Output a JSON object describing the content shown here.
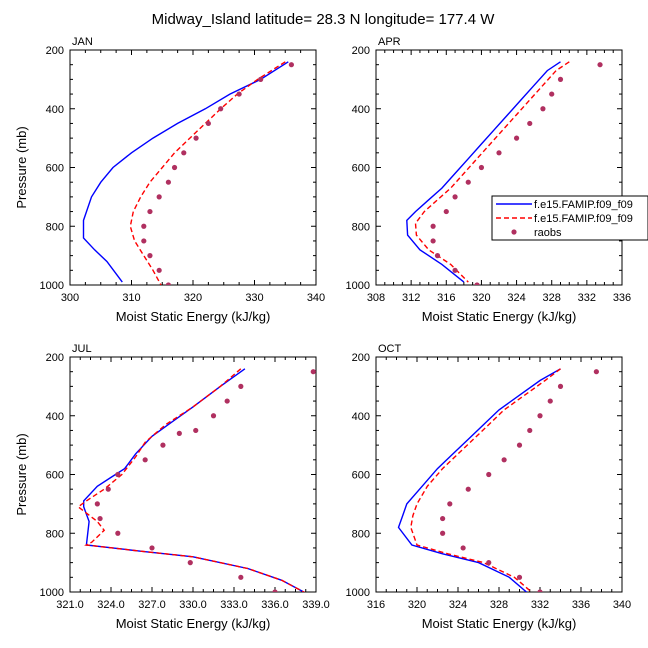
{
  "title": "Midway_Island  latitude= 28.3 N longitude= 177.4 W",
  "colors": {
    "model1": "#0000ff",
    "model2": "#ff0000",
    "raobs": "#b03060"
  },
  "legend": {
    "placement": "right of APR panel",
    "entries": [
      "f.e15.FAMIP.f09_f09",
      "f.e15.FAMIP.f09_f09",
      "raobs"
    ]
  },
  "chart_data": [
    {
      "type": "line",
      "panel": "JAN",
      "xlabel": "Moist Static Energy (kJ/kg)",
      "ylabel": "Pressure (mb)",
      "xlim": [
        300,
        340
      ],
      "ylim": [
        1000,
        200
      ],
      "y_reversed": true,
      "xticks": [
        "300",
        "310",
        "320",
        "330",
        "340"
      ],
      "yticks": [
        "200",
        "400",
        "600",
        "800",
        "1000"
      ],
      "series": [
        {
          "name": "f.e15.FAMIP.f09_f09",
          "style": "solid",
          "color": "#0000ff",
          "points": [
            [
              335.5,
              240
            ],
            [
              331,
              300
            ],
            [
              326,
              350
            ],
            [
              322,
              400
            ],
            [
              317.5,
              450
            ],
            [
              313.5,
              500
            ],
            [
              310,
              550
            ],
            [
              307,
              600
            ],
            [
              305,
              650
            ],
            [
              303.5,
              700
            ],
            [
              302.2,
              780
            ],
            [
              302.2,
              840
            ],
            [
              304,
              880
            ],
            [
              306,
              920
            ],
            [
              308.5,
              990
            ]
          ]
        },
        {
          "name": "f.e15.FAMIP.f09_f09",
          "style": "dashed",
          "color": "#ff0000",
          "points": [
            [
              335,
              240
            ],
            [
              330.5,
              300
            ],
            [
              327.2,
              350
            ],
            [
              324.5,
              400
            ],
            [
              322,
              450
            ],
            [
              319.5,
              500
            ],
            [
              317,
              550
            ],
            [
              315,
              600
            ],
            [
              313,
              650
            ],
            [
              311.5,
              700
            ],
            [
              310.3,
              750
            ],
            [
              309.8,
              800
            ],
            [
              310.5,
              850
            ],
            [
              312,
              900
            ],
            [
              313.5,
              950
            ],
            [
              314.8,
              1000
            ]
          ]
        },
        {
          "name": "raobs",
          "style": "marker",
          "color": "#b03060",
          "points": [
            [
              336,
              250
            ],
            [
              331,
              300
            ],
            [
              327.5,
              350
            ],
            [
              324.5,
              400
            ],
            [
              322.5,
              450
            ],
            [
              320.5,
              500
            ],
            [
              318.5,
              550
            ],
            [
              317,
              600
            ],
            [
              316,
              650
            ],
            [
              314.5,
              700
            ],
            [
              313,
              750
            ],
            [
              312,
              800
            ],
            [
              312,
              850
            ],
            [
              313,
              900
            ],
            [
              314.5,
              950
            ],
            [
              316,
              1000
            ]
          ]
        }
      ]
    },
    {
      "type": "line",
      "panel": "APR",
      "xlabel": "Moist Static Energy (kJ/kg)",
      "ylabel": "",
      "xlim": [
        308,
        336
      ],
      "ylim": [
        1000,
        200
      ],
      "y_reversed": true,
      "xticks": [
        "308",
        "312",
        "316",
        "320",
        "324",
        "328",
        "332",
        "336"
      ],
      "yticks": [
        "200",
        "400",
        "600",
        "800",
        "1000"
      ],
      "series": [
        {
          "name": "f.e15.FAMIP.f09_f09",
          "style": "solid",
          "color": "#0000ff",
          "points": [
            [
              329,
              240
            ],
            [
              327.5,
              270
            ],
            [
              326,
              320
            ],
            [
              324.5,
              370
            ],
            [
              323,
              420
            ],
            [
              321.5,
              470
            ],
            [
              320,
              520
            ],
            [
              318.5,
              570
            ],
            [
              317,
              620
            ],
            [
              315.5,
              670
            ],
            [
              314,
              710
            ],
            [
              312.5,
              750
            ],
            [
              311.5,
              780
            ],
            [
              311.6,
              830
            ],
            [
              313,
              880
            ],
            [
              315.5,
              930
            ],
            [
              318,
              990
            ]
          ]
        },
        {
          "name": "f.e15.FAMIP.f09_f09",
          "style": "dashed",
          "color": "#ff0000",
          "points": [
            [
              330,
              240
            ],
            [
              328.5,
              270
            ],
            [
              327,
              320
            ],
            [
              325.5,
              370
            ],
            [
              324,
              420
            ],
            [
              322.5,
              470
            ],
            [
              321,
              520
            ],
            [
              319.5,
              570
            ],
            [
              318,
              620
            ],
            [
              316.5,
              670
            ],
            [
              315,
              710
            ],
            [
              313.5,
              750
            ],
            [
              312.5,
              790
            ],
            [
              312.6,
              830
            ],
            [
              314,
              880
            ],
            [
              316.5,
              930
            ],
            [
              318.5,
              990
            ]
          ]
        },
        {
          "name": "raobs",
          "style": "marker",
          "color": "#b03060",
          "points": [
            [
              333.5,
              250
            ],
            [
              329,
              300
            ],
            [
              328,
              350
            ],
            [
              327,
              400
            ],
            [
              325.5,
              450
            ],
            [
              324,
              500
            ],
            [
              322,
              550
            ],
            [
              320,
              600
            ],
            [
              318.5,
              650
            ],
            [
              317,
              700
            ],
            [
              316,
              750
            ],
            [
              314.5,
              800
            ],
            [
              314.5,
              850
            ],
            [
              315,
              900
            ],
            [
              317,
              950
            ],
            [
              319.5,
              1000
            ]
          ]
        }
      ]
    },
    {
      "type": "line",
      "panel": "JUL",
      "xlabel": "Moist Static Energy (kJ/kg)",
      "ylabel": "Pressure (mb)",
      "xlim": [
        321,
        339
      ],
      "ylim": [
        1000,
        200
      ],
      "y_reversed": true,
      "xticks": [
        "321.0",
        "324.0",
        "327.0",
        "330.0",
        "333.0",
        "336.0",
        "339.0"
      ],
      "yticks": [
        "200",
        "400",
        "600",
        "800",
        "1000"
      ],
      "series": [
        {
          "name": "f.e15.FAMIP.f09_f09",
          "style": "solid",
          "color": "#0000ff",
          "points": [
            [
              333.8,
              240
            ],
            [
              332,
              300
            ],
            [
              330,
              370
            ],
            [
              328.5,
              420
            ],
            [
              327,
              470
            ],
            [
              325.8,
              530
            ],
            [
              325,
              580
            ],
            [
              324,
              610
            ],
            [
              323,
              640
            ],
            [
              322,
              690
            ],
            [
              322,
              710
            ],
            [
              322.4,
              760
            ],
            [
              322.2,
              840
            ],
            [
              326,
              860
            ],
            [
              330,
              880
            ],
            [
              334,
              920
            ],
            [
              336.5,
              960
            ],
            [
              338.5,
              1010
            ]
          ]
        },
        {
          "name": "f.e15.FAMIP.f09_f09",
          "style": "dashed",
          "color": "#ff0000",
          "points": [
            [
              333.5,
              240
            ],
            [
              332,
              300
            ],
            [
              330,
              370
            ],
            [
              328,
              430
            ],
            [
              326.5,
              490
            ],
            [
              325.8,
              540
            ],
            [
              324.8,
              600
            ],
            [
              323.5,
              650
            ],
            [
              322.2,
              690
            ],
            [
              321.6,
              710
            ],
            [
              323,
              760
            ],
            [
              323.5,
              790
            ],
            [
              322.6,
              830
            ],
            [
              322.2,
              840
            ],
            [
              326,
              860
            ],
            [
              330,
              880
            ],
            [
              334,
              920
            ],
            [
              336.5,
              960
            ],
            [
              338.5,
              1010
            ]
          ]
        },
        {
          "name": "raobs",
          "style": "marker",
          "color": "#b03060",
          "points": [
            [
              338.8,
              250
            ],
            [
              333.5,
              300
            ],
            [
              332.5,
              350
            ],
            [
              331.5,
              400
            ],
            [
              330.2,
              450
            ],
            [
              329,
              460
            ],
            [
              327.8,
              500
            ],
            [
              326.5,
              550
            ],
            [
              324.5,
              600
            ],
            [
              323.8,
              650
            ],
            [
              323,
              700
            ],
            [
              323.2,
              750
            ],
            [
              324.5,
              800
            ],
            [
              327,
              850
            ],
            [
              329.8,
              900
            ],
            [
              333.5,
              950
            ],
            [
              336,
              1000
            ]
          ]
        }
      ]
    },
    {
      "type": "line",
      "panel": "OCT",
      "xlabel": "Moist Static Energy (kJ/kg)",
      "ylabel": "",
      "xlim": [
        316,
        340
      ],
      "ylim": [
        1000,
        200
      ],
      "y_reversed": true,
      "xticks": [
        "316",
        "320",
        "324",
        "328",
        "332",
        "336",
        "340"
      ],
      "yticks": [
        "200",
        "400",
        "600",
        "800",
        "1000"
      ],
      "series": [
        {
          "name": "f.e15.FAMIP.f09_f09",
          "style": "solid",
          "color": "#0000ff",
          "points": [
            [
              334,
              240
            ],
            [
              332,
              280
            ],
            [
              330,
              330
            ],
            [
              328,
              380
            ],
            [
              326.5,
              430
            ],
            [
              325,
              480
            ],
            [
              323.5,
              530
            ],
            [
              322,
              580
            ],
            [
              320.5,
              640
            ],
            [
              319,
              700
            ],
            [
              318.6,
              740
            ],
            [
              318.2,
              780
            ],
            [
              319.5,
              840
            ],
            [
              322.5,
              870
            ],
            [
              326,
              900
            ],
            [
              329,
              950
            ],
            [
              331,
              1010
            ]
          ]
        },
        {
          "name": "f.e15.FAMIP.f09_f09",
          "style": "dashed",
          "color": "#ff0000",
          "points": [
            [
              334,
              240
            ],
            [
              332.5,
              280
            ],
            [
              330.5,
              330
            ],
            [
              328.5,
              380
            ],
            [
              327,
              430
            ],
            [
              325.5,
              480
            ],
            [
              324,
              530
            ],
            [
              322.5,
              580
            ],
            [
              321,
              640
            ],
            [
              320,
              700
            ],
            [
              319.6,
              740
            ],
            [
              319.4,
              780
            ],
            [
              320,
              840
            ],
            [
              323,
              870
            ],
            [
              326.5,
              900
            ],
            [
              329.5,
              950
            ],
            [
              331.5,
              1010
            ]
          ]
        },
        {
          "name": "raobs",
          "style": "marker",
          "color": "#b03060",
          "points": [
            [
              337.5,
              250
            ],
            [
              334,
              300
            ],
            [
              333,
              350
            ],
            [
              332,
              400
            ],
            [
              331,
              450
            ],
            [
              330,
              500
            ],
            [
              328.5,
              550
            ],
            [
              327,
              600
            ],
            [
              325,
              650
            ],
            [
              323.2,
              700
            ],
            [
              322.5,
              750
            ],
            [
              322.5,
              800
            ],
            [
              324.5,
              850
            ],
            [
              327,
              900
            ],
            [
              330,
              950
            ],
            [
              332,
              1000
            ]
          ]
        }
      ]
    }
  ]
}
